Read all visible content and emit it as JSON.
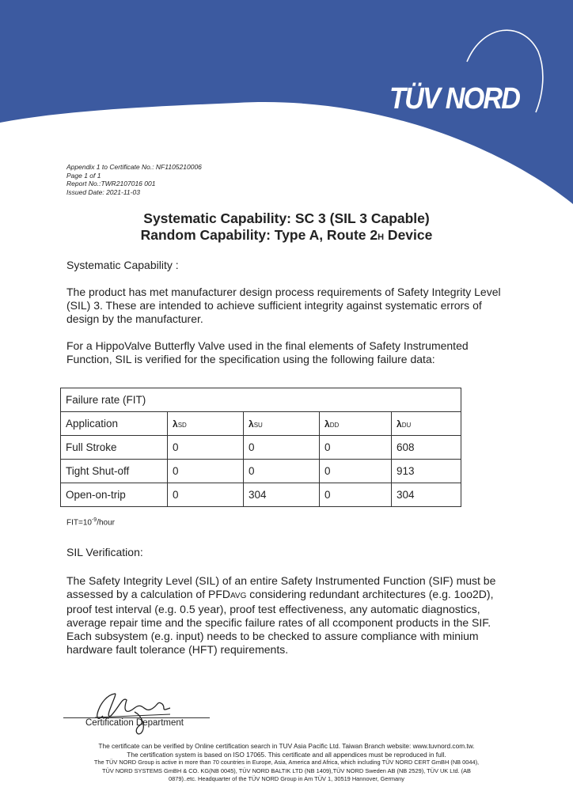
{
  "brand": {
    "logo_text": "TÜV NORD",
    "color": "#3c5aa0"
  },
  "meta": [
    "Appendix 1 to Certificate No.: NF1105210006",
    "Page 1 of 1",
    "Report No.:TWR2107016 001",
    "Issued Date: 2021-11-03"
  ],
  "title": {
    "line1": "Systematic Capability: SC 3 (SIL 3 Capable)",
    "line2_main": "Random Capability: Type A, Route 2",
    "line2_sub": "H",
    "line2_end": " Device"
  },
  "systematic": {
    "heading": "Systematic Capability :",
    "para1": "The product has met manufacturer design process requirements of Safety Integrity Level (SIL) 3. These are intended to achieve sufficient integrity against systematic errors of design by the manufacturer.",
    "para2": "For a HippoValve Butterfly Valve used in the final elements of Safety Instrumented Function, SIL is verified for the specification using the following failure data:"
  },
  "table": {
    "caption": "Failure rate (FIT)",
    "header": {
      "application": "Application",
      "cols": [
        {
          "symbol": "λ",
          "sub": "SD"
        },
        {
          "symbol": "λ",
          "sub": "SU"
        },
        {
          "symbol": "λ",
          "sub": "DD"
        },
        {
          "symbol": "λ",
          "sub": "DU"
        }
      ]
    },
    "rows": [
      {
        "application": "Full Stroke",
        "values": [
          "0",
          "0",
          "0",
          "608"
        ]
      },
      {
        "application": "Tight Shut-off",
        "values": [
          "0",
          "0",
          "0",
          "913"
        ]
      },
      {
        "application": "Open-on-trip",
        "values": [
          "0",
          "304",
          "0",
          "304"
        ]
      }
    ],
    "note_main": "FIT=10",
    "note_exp": "-9",
    "note_end": "/hour"
  },
  "sil": {
    "heading": "SIL Verification:",
    "p_a": "The Safety Integrity Level (SIL) of an entire Safety Instrumented Function (SIF) must be assessed by  a calculation of PFD",
    "p_sub": "AVG",
    "p_b": " considering redundant architectures (e.g. 1oo2D), proof test interval (e.g. 0.5 year), proof test effectiveness, any automatic diagnostics, average repair time and the specific failure rates of all ccomponent products in the SIF. Each subsystem (e.g. input) needs to be checked to assure compliance with minium hardware fault tolerance (HFT) requirements."
  },
  "signature": {
    "label": "Certification Department"
  },
  "footer": [
    "The certificate can be verified by Online certification search in TUV Asia Pacific Ltd. Taiwan Branch website: www.tuvnord.com.tw.",
    "The certification system is based on ISO 17065. This certificate and all appendices must be reproduced in full.",
    "The TÜV NORD Group is active in more than 70 countries in Europe, Asia, America and Africa, which including TÜV NORD CERT GmBH (NB 0044),",
    "TÜV NORD SYSTEMS GmBH & CO. KG(NB 0045), TÜV NORD BALTIK LTD (NB 1409),TÜV NORD Sweden AB (NB 2529), TÜV UK Ltd. (AB",
    "0879)..etc. Headquarter of the TÜV NORD Group in Am TÜV 1, 30519 Hannover, Germany"
  ]
}
